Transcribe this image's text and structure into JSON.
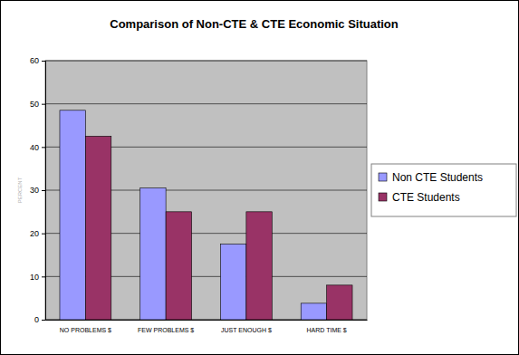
{
  "chart_data": {
    "type": "bar",
    "title": "Comparison of Non-CTE & CTE Economic Situation",
    "y_label": "PERCENT",
    "categories": [
      "NO PROBLEMS $",
      "FEW PROBLEMS $",
      "JUST ENOUGH $",
      "HARD TIME $"
    ],
    "series": [
      {
        "name": "Non CTE Students",
        "color": "#9999ff",
        "values": [
          48.5,
          30.5,
          17.5,
          3.8
        ]
      },
      {
        "name": "CTE Students",
        "color": "#993366",
        "values": [
          42.5,
          25,
          25,
          8
        ]
      }
    ],
    "ylim": [
      0,
      60
    ],
    "yticks": [
      0,
      10,
      20,
      30,
      40,
      50,
      60
    ],
    "grid": true,
    "legend": "right"
  }
}
